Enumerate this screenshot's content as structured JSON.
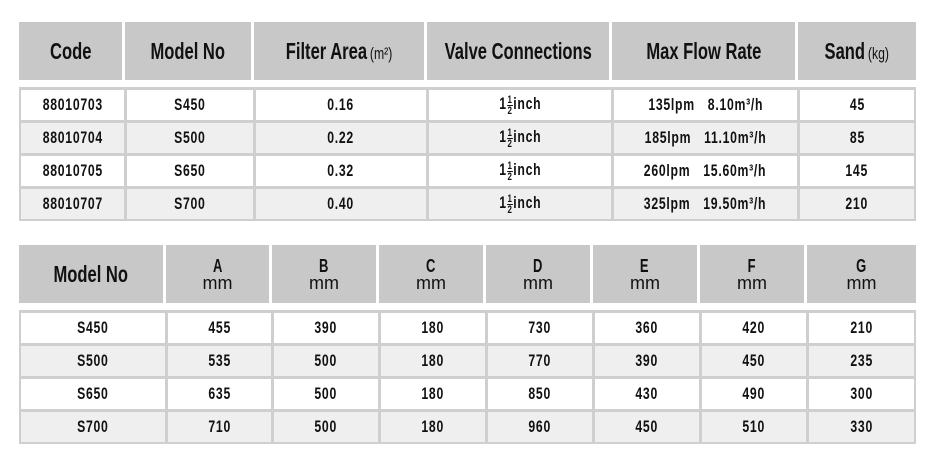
{
  "table1": {
    "headers": [
      {
        "label": "Code",
        "unit": ""
      },
      {
        "label": "Model No",
        "unit": ""
      },
      {
        "label": "Filter Area",
        "unit": "(m²)"
      },
      {
        "label": "Valve Connections",
        "unit": ""
      },
      {
        "label": "Max Flow Rate",
        "unit": ""
      },
      {
        "label": "Sand",
        "unit": "(kg)"
      }
    ],
    "rows": [
      {
        "code": "88010703",
        "model": "S450",
        "area": "0.16",
        "valve": {
          "whole": "1",
          "num": "1",
          "den": "2",
          "unit": "inch"
        },
        "flow_lpm": "135lpm",
        "flow_m3h": "8.10m³/h",
        "sand": "45"
      },
      {
        "code": "88010704",
        "model": "S500",
        "area": "0.22",
        "valve": {
          "whole": "1",
          "num": "1",
          "den": "2",
          "unit": "inch"
        },
        "flow_lpm": "185lpm",
        "flow_m3h": "11.10m³/h",
        "sand": "85"
      },
      {
        "code": "88010705",
        "model": "S650",
        "area": "0.32",
        "valve": {
          "whole": "1",
          "num": "1",
          "den": "2",
          "unit": "inch"
        },
        "flow_lpm": "260lpm",
        "flow_m3h": "15.60m³/h",
        "sand": "145"
      },
      {
        "code": "88010707",
        "model": "S700",
        "area": "0.40",
        "valve": {
          "whole": "1",
          "num": "1",
          "den": "2",
          "unit": "inch"
        },
        "flow_lpm": "325lpm",
        "flow_m3h": "19.50m³/h",
        "sand": "210"
      }
    ]
  },
  "table2": {
    "headers": [
      {
        "label": "Model No",
        "unit": ""
      },
      {
        "label": "A",
        "unit": "mm"
      },
      {
        "label": "B",
        "unit": "mm"
      },
      {
        "label": "C",
        "unit": "mm"
      },
      {
        "label": "D",
        "unit": "mm"
      },
      {
        "label": "E",
        "unit": "mm"
      },
      {
        "label": "F",
        "unit": "mm"
      },
      {
        "label": "G",
        "unit": "mm"
      }
    ],
    "rows": [
      [
        "S450",
        "455",
        "390",
        "180",
        "730",
        "360",
        "420",
        "210"
      ],
      [
        "S500",
        "535",
        "500",
        "180",
        "770",
        "390",
        "450",
        "235"
      ],
      [
        "S650",
        "635",
        "500",
        "180",
        "850",
        "430",
        "490",
        "300"
      ],
      [
        "S700",
        "710",
        "500",
        "180",
        "960",
        "450",
        "510",
        "330"
      ]
    ]
  },
  "colors": {
    "header_bg": "#c8c8c8",
    "row_alt": "#efefef",
    "border": "#cfcfcf"
  }
}
